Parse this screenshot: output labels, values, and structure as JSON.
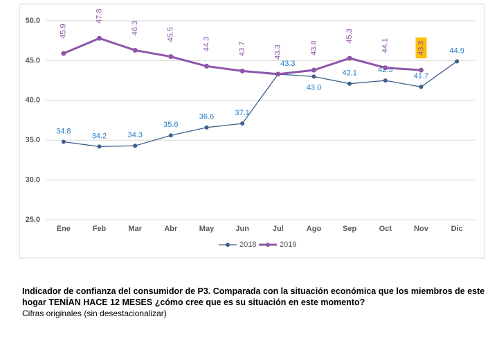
{
  "chart_data": {
    "type": "line",
    "title": "Indicador de confianza del consumidor de P3. Comparada con la situación económica que los miembros de este hogar TENÍAN HACE 12 MESES ¿cómo cree que es su situación en este momento?",
    "subtitle": "Cifras originales (sin desestacionalizar)",
    "categories": [
      "Ene",
      "Feb",
      "Mar",
      "Abr",
      "May",
      "Jun",
      "Jul",
      "Ago",
      "Sep",
      "Oct",
      "Nov",
      "Dic"
    ],
    "series": [
      {
        "name": "2018",
        "color": "#3d5f8a",
        "label_color": "#1f7ac4",
        "values": [
          34.8,
          34.2,
          34.3,
          35.6,
          36.6,
          37.1,
          43.3,
          43.0,
          42.1,
          42.5,
          41.7,
          44.9
        ],
        "value_labels": [
          "34.8",
          "34.2",
          "34.3",
          "35.6",
          "36.6",
          "37.1",
          "43.3",
          "43.0",
          "42.1",
          "42.5",
          "41.7",
          "44.9"
        ]
      },
      {
        "name": "2019",
        "color": "#8e55aa",
        "label_color": "#8e55aa",
        "values": [
          45.9,
          47.8,
          46.3,
          45.5,
          44.3,
          43.7,
          43.3,
          43.8,
          45.3,
          44.1,
          43.8,
          null
        ],
        "value_labels": [
          "45.9",
          "47.8",
          "46.3",
          "45.5",
          "44.3",
          "43.7",
          "43.3",
          "43.8",
          "45.3",
          "44.1",
          "43.8",
          null
        ]
      }
    ],
    "ylim": [
      25,
      50
    ],
    "yticks": [
      {
        "value": 25,
        "label": "25.0"
      },
      {
        "value": 30,
        "label": "30.0"
      },
      {
        "value": 35,
        "label": "35.0"
      },
      {
        "value": 40,
        "label": "40.0"
      },
      {
        "value": 45,
        "label": "45.0"
      },
      {
        "value": 50,
        "label": "50.0"
      }
    ],
    "grid": true,
    "legend": "bottom"
  }
}
